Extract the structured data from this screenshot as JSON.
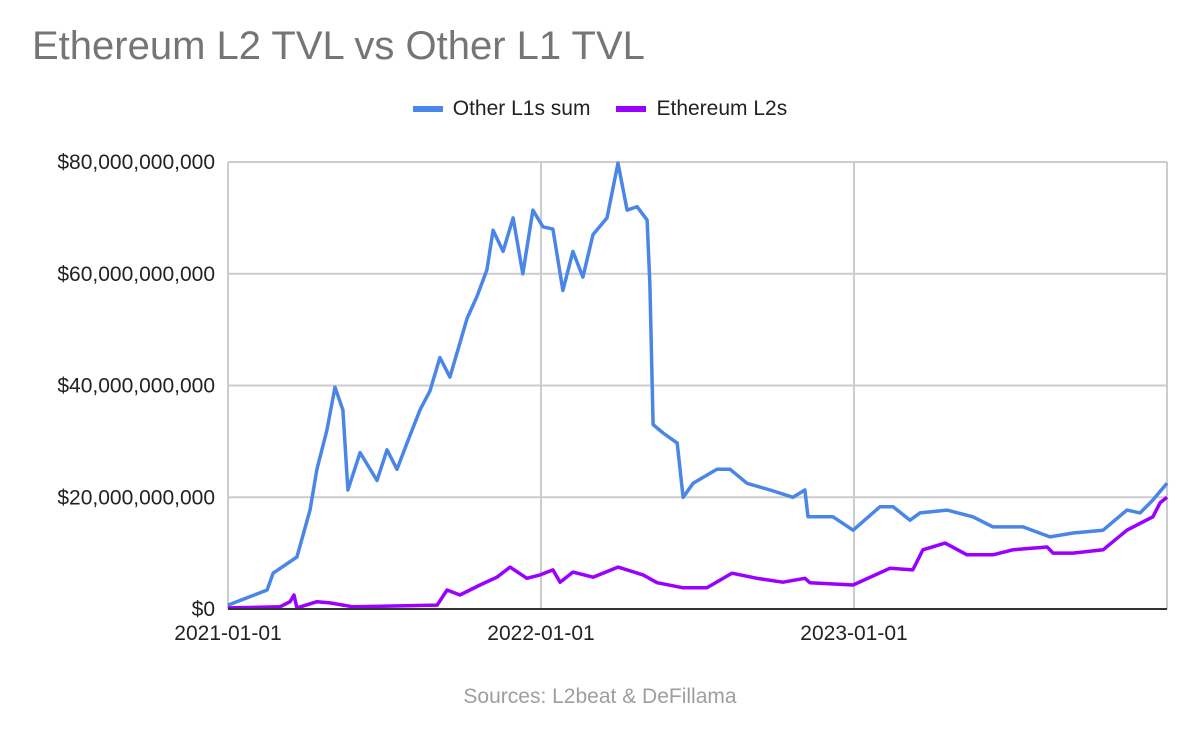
{
  "chart_data": {
    "type": "line",
    "title": "Ethereum L2 TVL vs Other L1 TVL",
    "xlabel": "",
    "ylabel": "",
    "x_unit": "decimal year",
    "xlim": [
      2021.0,
      2024.0
    ],
    "ylim": [
      0,
      80000000000
    ],
    "grid": true,
    "legend_position": "top-center",
    "y_ticks": [
      {
        "value": 0,
        "label": "$0"
      },
      {
        "value": 20000000000,
        "label": "$20,000,000,000"
      },
      {
        "value": 40000000000,
        "label": "$40,000,000,000"
      },
      {
        "value": 60000000000,
        "label": "$60,000,000,000"
      },
      {
        "value": 80000000000,
        "label": "$80,000,000,000"
      }
    ],
    "x_ticks": [
      {
        "value": 2021.0,
        "label": "2021-01-01"
      },
      {
        "value": 2022.0,
        "label": "2022-01-01"
      },
      {
        "value": 2023.0,
        "label": "2023-01-01"
      }
    ],
    "series": [
      {
        "name": "Other L1s sum",
        "color": "#4a86e8",
        "x": [
          2021.0,
          2021.061,
          2021.125,
          2021.144,
          2021.22,
          2021.262,
          2021.284,
          2021.316,
          2021.342,
          2021.367,
          2021.383,
          2021.422,
          2021.476,
          2021.508,
          2021.54,
          2021.572,
          2021.613,
          2021.645,
          2021.677,
          2021.709,
          2021.741,
          2021.764,
          2021.796,
          2021.827,
          2021.847,
          2021.879,
          2021.911,
          2021.942,
          2021.974,
          2022.006,
          2022.038,
          2022.07,
          2022.102,
          2022.134,
          2022.166,
          2022.211,
          2022.246,
          2022.275,
          2022.307,
          2022.339,
          2022.348,
          2022.358,
          2022.39,
          2022.435,
          2022.454,
          2022.486,
          2022.562,
          2022.604,
          2022.658,
          2022.732,
          2022.805,
          2022.843,
          2022.853,
          2022.933,
          2022.997,
          2023.083,
          2023.125,
          2023.179,
          2023.211,
          2023.297,
          2023.38,
          2023.444,
          2023.54,
          2023.626,
          2023.7,
          2023.796,
          2023.872,
          2023.914,
          2023.955,
          2024.0
        ],
        "y": [
          700000000.0,
          2000000000.0,
          3400000000.0,
          6400000000.0,
          9300000000.0,
          17700000000.0,
          25000000000.0,
          32000000000.0,
          39700000000.0,
          35600000000.0,
          21300000000.0,
          28000000000.0,
          23000000000.0,
          28500000000.0,
          25000000000.0,
          29700000000.0,
          35600000000.0,
          39000000000.0,
          45000000000.0,
          41500000000.0,
          47600000000.0,
          52000000000.0,
          56000000000.0,
          60700000000.0,
          67800000000.0,
          64000000000.0,
          70000000000.0,
          60000000000.0,
          71400000000.0,
          68400000000.0,
          68000000000.0,
          57000000000.0,
          64000000000.0,
          59400000000.0,
          67000000000.0,
          70000000000.0,
          79800000000.0,
          71400000000.0,
          72000000000.0,
          69600000000.0,
          58000000000.0,
          33000000000.0,
          31500000000.0,
          29700000000.0,
          20000000000.0,
          22500000000.0,
          25000000000.0,
          25000000000.0,
          22500000000.0,
          21300000000.0,
          20000000000.0,
          21300000000.0,
          16500000000.0,
          16500000000.0,
          14100000000.0,
          18300000000.0,
          18300000000.0,
          15900000000.0,
          17200000000.0,
          17700000000.0,
          16500000000.0,
          14700000000.0,
          14700000000.0,
          12900000000.0,
          13600000000.0,
          14100000000.0,
          17700000000.0,
          17200000000.0,
          19500000000.0,
          22500000000.0
        ]
      },
      {
        "name": "Ethereum L2s",
        "color": "#9900ff",
        "x": [
          2021.0,
          2021.166,
          2021.198,
          2021.211,
          2021.22,
          2021.284,
          2021.326,
          2021.399,
          2021.668,
          2021.7,
          2021.741,
          2021.805,
          2021.859,
          2021.901,
          2021.955,
          2021.997,
          2022.038,
          2022.061,
          2022.102,
          2022.166,
          2022.246,
          2022.326,
          2022.371,
          2022.454,
          2022.53,
          2022.61,
          2022.69,
          2022.773,
          2022.843,
          2022.859,
          2022.997,
          2023.115,
          2023.188,
          2023.22,
          2023.291,
          2023.361,
          2023.444,
          2023.508,
          2023.617,
          2023.636,
          2023.7,
          2023.796,
          2023.872,
          2023.955,
          2023.978,
          2024.0
        ],
        "y": [
          200000000.0,
          400000000.0,
          1300000000.0,
          2500000000.0,
          200000000.0,
          1300000000.0,
          1100000000.0,
          400000000.0,
          700000000.0,
          3400000000.0,
          2500000000.0,
          4300000000.0,
          5700000000.0,
          7500000000.0,
          5500000000.0,
          6100000000.0,
          7000000000.0,
          4800000000.0,
          6600000000.0,
          5700000000.0,
          7500000000.0,
          6100000000.0,
          4700000000.0,
          3800000000.0,
          3800000000.0,
          6400000000.0,
          5500000000.0,
          4800000000.0,
          5500000000.0,
          4700000000.0,
          4300000000.0,
          7300000000.0,
          7000000000.0,
          10600000000.0,
          11800000000.0,
          9700000000.0,
          9700000000.0,
          10600000000.0,
          11100000000.0,
          10000000000.0,
          10000000000.0,
          10600000000.0,
          14100000000.0,
          16500000000.0,
          19000000000.0,
          20000000000.0
        ]
      }
    ],
    "source": "Sources: L2beat & DeFillama"
  }
}
